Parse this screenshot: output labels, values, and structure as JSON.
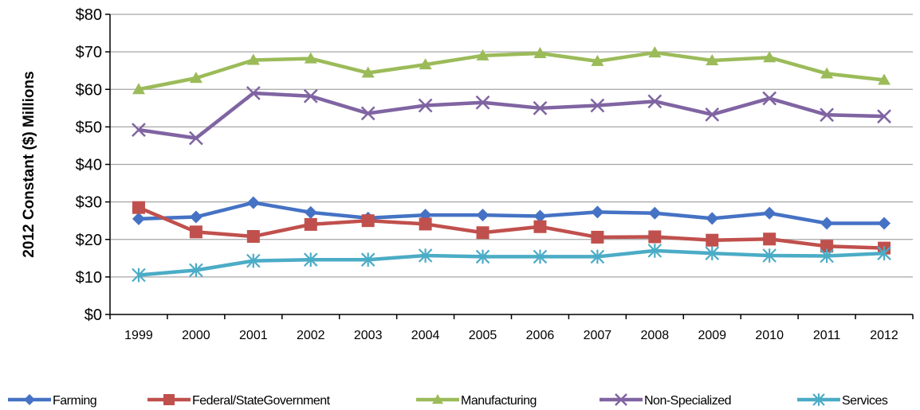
{
  "chart_data": {
    "type": "line",
    "title": "",
    "xlabel": "",
    "ylabel": "2012 Constant ($) Millions",
    "ylim": [
      0,
      80
    ],
    "y_ticks": [
      "$0",
      "$10",
      "$20",
      "$30",
      "$40",
      "$50",
      "$60",
      "$70",
      "$80"
    ],
    "y_tick_values": [
      0,
      10,
      20,
      30,
      40,
      50,
      60,
      70,
      80
    ],
    "categories": [
      "1999",
      "2000",
      "2001",
      "2002",
      "2003",
      "2004",
      "2005",
      "2006",
      "2007",
      "2008",
      "2009",
      "2010",
      "2011",
      "2012"
    ],
    "grid": "horizontal",
    "legend_position": "bottom",
    "series": [
      {
        "name": "Farming",
        "color": "#4572C4",
        "marker": "diamond",
        "values": [
          25.5,
          26.0,
          29.8,
          27.2,
          25.7,
          26.5,
          26.5,
          26.2,
          27.3,
          27.0,
          25.6,
          27.0,
          24.3,
          24.3
        ]
      },
      {
        "name": "Federal/StateGovernment",
        "color": "#C0504D",
        "marker": "square",
        "values": [
          28.5,
          22.0,
          20.8,
          24.0,
          25.0,
          24.1,
          21.8,
          23.4,
          20.6,
          20.7,
          19.8,
          20.1,
          18.2,
          17.7
        ]
      },
      {
        "name": "Manufacturing",
        "color": "#9BBB59",
        "marker": "triangle",
        "values": [
          60.0,
          63.0,
          67.8,
          68.2,
          64.4,
          66.6,
          69.0,
          69.6,
          67.5,
          69.8,
          67.7,
          68.5,
          64.2,
          62.5
        ]
      },
      {
        "name": "Non-Specialized",
        "color": "#8064A2",
        "marker": "x",
        "values": [
          49.2,
          47.0,
          59.0,
          58.2,
          53.6,
          55.7,
          56.5,
          55.0,
          55.7,
          56.8,
          53.3,
          57.6,
          53.2,
          52.8
        ]
      },
      {
        "name": "Services",
        "color": "#4BACC6",
        "marker": "asterisk",
        "values": [
          10.5,
          11.8,
          14.3,
          14.6,
          14.6,
          15.7,
          15.4,
          15.4,
          15.4,
          17.0,
          16.3,
          15.7,
          15.6,
          16.3
        ]
      }
    ]
  }
}
